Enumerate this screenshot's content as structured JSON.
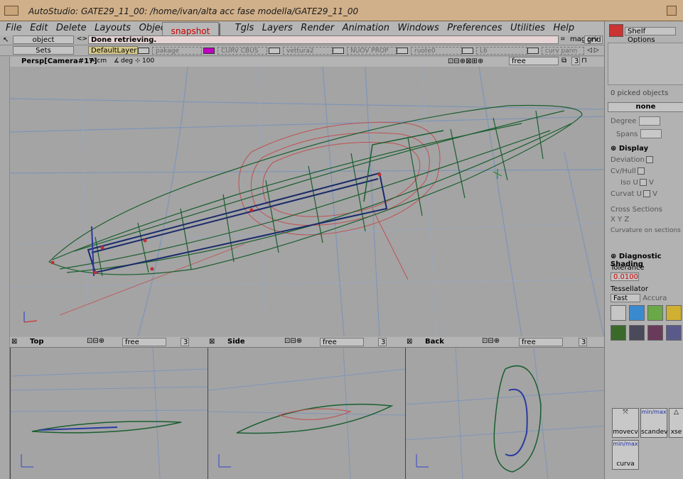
{
  "window": {
    "title": "AutoStudio: GATE29_11_00: /home/ivan/alta acc fase modella/GATE29_11_00"
  },
  "menu": [
    "File",
    "Edit",
    "Delete",
    "Layouts",
    "ObjectL",
    "Tgls",
    "Layers",
    "Render",
    "Animation",
    "Windows",
    "Preferences",
    "Utilities",
    "Help"
  ],
  "snapshot_tab": "snapshot",
  "toolbar": {
    "mode": "object",
    "arrow": "<>",
    "status": "Done retrieving.",
    "mag": "mag",
    "grid": "grid",
    "crv": "crv",
    "sets": "Sets",
    "layers": [
      "DefaultLayer",
      "pakage",
      "CURV CBUS",
      "vettura2",
      "NUOV PROP",
      "ruote0",
      "L6",
      "curv pann"
    ],
    "scroll": "◁ ▷"
  },
  "viewport": {
    "name": "Persp[Camera#17]",
    "units_linear": "↔ cm",
    "units_angle": "deg",
    "grid_size": "100",
    "camera_mode": "free",
    "count": "3"
  },
  "panes": [
    {
      "name": "Top",
      "mode": "free",
      "count": "3"
    },
    {
      "name": "Side",
      "mode": "free",
      "count": "3"
    },
    {
      "name": "Back",
      "mode": "free",
      "count": "3"
    }
  ],
  "right_panel": {
    "shelf_options": "Shelf Options",
    "picked": "0 picked objects",
    "selection": "none",
    "degree": "Degree",
    "spans": "Spans",
    "display": "Display",
    "deviation": "Deviation",
    "cvhull": "Cv/Hull",
    "iso_u": "Iso U",
    "iso_v": "V",
    "curvat_u": "Curvat U",
    "curvat_v": "V",
    "cross_sections": "Cross Sections",
    "xyz": "X Y Z",
    "curvature_sections": "Curvature on sections",
    "diag_shading": "Diagnostic Shading",
    "tolerance": "Tolerance",
    "tolerance_value": "0.0100",
    "tessellator": "Tessellator",
    "fast": "Fast",
    "accurate": "Accura",
    "tools": [
      "movecv",
      "scandev",
      "xse",
      "curva"
    ],
    "min": "min",
    "max": "max",
    "xyz_short": "X",
    "ylabel": "Y",
    "zlabel": "Z"
  },
  "colors": {
    "curve_green": "#1a5e2e",
    "curve_red": "#c05050",
    "curve_blue": "#2b3aa0",
    "grid": "#7f95b8"
  }
}
